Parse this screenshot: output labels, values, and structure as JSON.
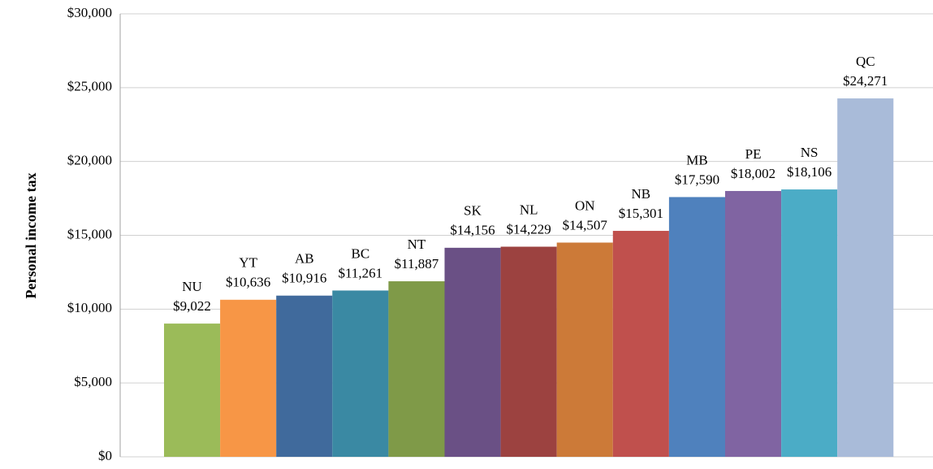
{
  "chart_data": {
    "type": "bar",
    "y_label": "Personal income tax",
    "categories": [
      "NU",
      "YT",
      "AB",
      "BC",
      "NT",
      "SK",
      "NL",
      "ON",
      "NB",
      "MB",
      "PE",
      "NS",
      "QC"
    ],
    "values": [
      9022,
      10636,
      10916,
      11261,
      11887,
      14156,
      14229,
      14507,
      15301,
      17590,
      18002,
      18106,
      24271
    ],
    "value_labels": [
      "$9,022",
      "$10,636",
      "$10,916",
      "$11,261",
      "$11,887",
      "$14,156",
      "$14,229",
      "$14,507",
      "$15,301",
      "$17,590",
      "$18,002",
      "$18,106",
      "$24,271"
    ],
    "colors": [
      "#9bbb59",
      "#f79646",
      "#406a9c",
      "#3a89a3",
      "#7f9a48",
      "#6a5085",
      "#9c4240",
      "#cc7a38",
      "#c0504d",
      "#4f81bd",
      "#8064a2",
      "#4bacc6",
      "#a9bbd9"
    ],
    "ylim": [
      0,
      30000
    ],
    "yticks": [
      {
        "value": 0,
        "label": "$0"
      },
      {
        "value": 5000,
        "label": "$5,000"
      },
      {
        "value": 10000,
        "label": "$10,000"
      },
      {
        "value": 15000,
        "label": "$15,000"
      },
      {
        "value": 20000,
        "label": "$20,000"
      },
      {
        "value": 25000,
        "label": "$25,000"
      },
      {
        "value": 30000,
        "label": "$30,000"
      }
    ],
    "grid": true
  }
}
